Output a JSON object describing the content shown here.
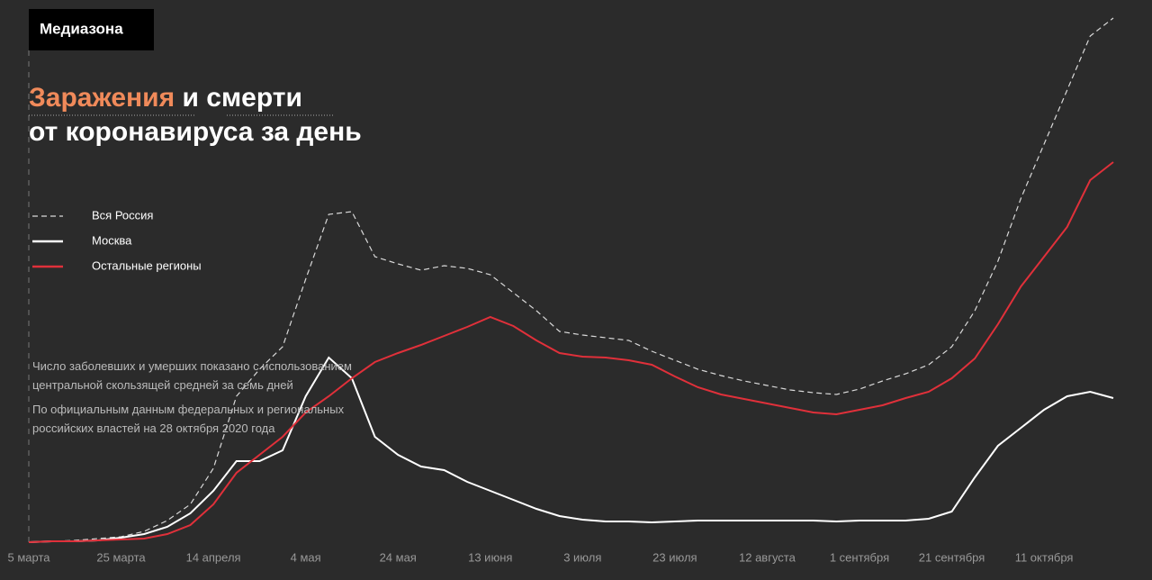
{
  "brand": "Медиазона",
  "chart_data": {
    "type": "line",
    "title": [
      "Заражения",
      "и",
      "смерти",
      "от коронавируса за день"
    ],
    "annotations": [
      "Число заболевших и умерших показано с использованием центральной скользящей средней за семь дней",
      "По официальным данным федеральных и региональных российских властей на 28 октября 2020 года"
    ],
    "categories": [
      "5 марта",
      null,
      null,
      null,
      "25 марта",
      null,
      null,
      null,
      "14 апреля",
      null,
      null,
      null,
      "4 мая",
      null,
      null,
      null,
      "24 мая",
      null,
      null,
      null,
      "13 июня",
      null,
      null,
      null,
      "3 июля",
      null,
      null,
      null,
      "23 июля",
      null,
      null,
      null,
      "12 августа",
      null,
      null,
      null,
      "1 сентября",
      null,
      null,
      null,
      "21 сентября",
      null,
      null,
      null,
      "11 октября",
      null,
      null,
      null
    ],
    "series": [
      {
        "name": "Вся Россия",
        "color": "#d9d9d9",
        "dashed": true,
        "values": [
          0,
          1,
          2,
          4,
          6,
          12,
          24,
          42,
          82,
          162,
          192,
          217,
          292,
          364,
          367,
          317,
          309,
          302,
          307,
          304,
          297,
          277,
          257,
          234,
          230,
          227,
          224,
          212,
          202,
          192,
          185,
          179,
          174,
          169,
          166,
          164,
          170,
          179,
          187,
          197,
          217,
          257,
          312,
          382,
          442,
          502,
          562,
          582
        ]
      },
      {
        "name": "Москва",
        "color": "#ffffff",
        "dashed": false,
        "values": [
          0,
          1,
          1,
          2,
          5,
          9,
          17,
          32,
          57,
          90,
          90,
          102,
          162,
          205,
          182,
          117,
          97,
          84,
          80,
          67,
          57,
          47,
          37,
          29,
          25,
          23,
          23,
          22,
          23,
          24,
          24,
          24,
          24,
          24,
          24,
          23,
          24,
          24,
          24,
          26,
          34,
          72,
          107,
          127,
          147,
          162,
          167,
          160
        ]
      },
      {
        "name": "Остальные регионы",
        "color": "#e0303a",
        "dashed": false,
        "values": [
          0,
          1,
          1,
          2,
          3,
          4,
          9,
          19,
          42,
          77,
          97,
          117,
          144,
          162,
          182,
          200,
          210,
          219,
          229,
          239,
          250,
          240,
          224,
          210,
          206,
          205,
          202,
          197,
          184,
          172,
          164,
          159,
          154,
          149,
          144,
          142,
          147,
          152,
          160,
          167,
          182,
          204,
          242,
          284,
          317,
          350,
          402,
          422
        ]
      }
    ],
    "ylim": [
      0,
      590
    ],
    "legend": "top-left"
  }
}
